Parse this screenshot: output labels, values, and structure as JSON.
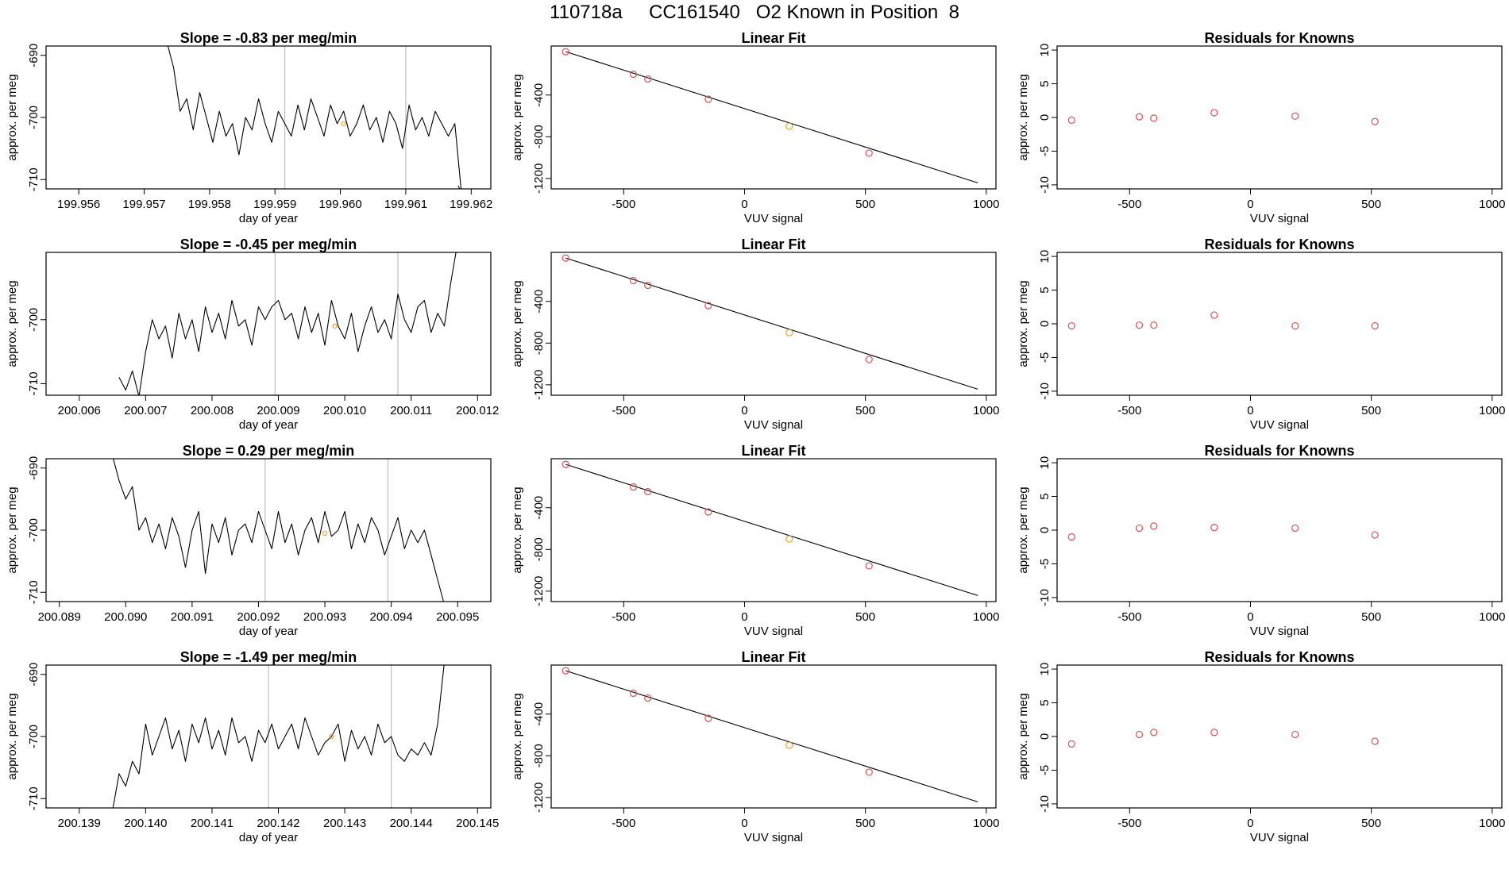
{
  "page_title": "110718a     CC161540   O2 Known in Position  8",
  "colors": {
    "axis": "#000000",
    "line": "#000000",
    "point_known": "#d9534f",
    "point_highlight": "#f0a020",
    "vline": "#bfbfbf"
  },
  "chart_data": [
    {
      "type": "line",
      "title": "Slope =  -0.83  per meg/min",
      "xlabel": "day of year",
      "ylabel": "approx. per meg",
      "xlim": [
        199.9555,
        199.9623
      ],
      "ylim": [
        -711.5,
        -688.5
      ],
      "xticks": [
        199.956,
        199.957,
        199.958,
        199.959,
        199.96,
        199.961,
        199.962
      ],
      "xtick_labels": [
        "199.956",
        "199.957",
        "199.958",
        "199.959",
        "199.960",
        "199.961",
        "199.962"
      ],
      "yticks": [
        -690,
        -700,
        -710
      ],
      "ytick_labels": [
        "-690",
        "-700",
        "-710"
      ],
      "vlines": [
        199.95915,
        199.961
      ],
      "highlight_point": {
        "x": 199.96005,
        "y": -701
      },
      "x": [
        199.95735,
        199.95745,
        199.95755,
        199.95765,
        199.95775,
        199.95785,
        199.95795,
        199.95805,
        199.95815,
        199.95825,
        199.95835,
        199.95845,
        199.95855,
        199.95865,
        199.95875,
        199.95885,
        199.95895,
        199.95905,
        199.95915,
        199.95925,
        199.95935,
        199.95945,
        199.95955,
        199.95965,
        199.95975,
        199.95985,
        199.95995,
        199.96005,
        199.96015,
        199.96025,
        199.96035,
        199.96045,
        199.96055,
        199.96065,
        199.96075,
        199.96085,
        199.96095,
        199.96105,
        199.96115,
        199.96125,
        199.96135,
        199.96145,
        199.96155,
        199.96165,
        199.96175,
        199.96185,
        199.9618
      ],
      "y": [
        -688,
        -692,
        -699,
        -697,
        -702,
        -696,
        -700,
        -704,
        -699,
        -703,
        -701,
        -706,
        -700,
        -702,
        -697,
        -701,
        -704,
        -699,
        -701,
        -703,
        -698,
        -702,
        -697,
        -700,
        -703,
        -698,
        -701,
        -699,
        -703,
        -701,
        -698,
        -702,
        -700,
        -704,
        -699,
        -701,
        -705,
        -698,
        -702,
        -700,
        -703,
        -699,
        -701,
        -703,
        -701,
        -712,
        -711
      ]
    },
    {
      "type": "scatter",
      "title": "Linear Fit",
      "xlabel": "VUV signal",
      "ylabel": "approx. per meg",
      "xlim": [
        -800,
        1040
      ],
      "ylim": [
        -1300,
        70
      ],
      "xticks": [
        -500,
        0,
        500,
        1000
      ],
      "xtick_labels": [
        "-500",
        "0",
        "500",
        "1000"
      ],
      "yticks": [
        -400,
        -800,
        -1200
      ],
      "ytick_labels": [
        "-400",
        "-800",
        "-1200"
      ],
      "fit_line": {
        "x1": -740,
        "y1": 16,
        "x2": 965,
        "y2": -1242
      },
      "x": [
        -740,
        -460,
        -400,
        -150,
        185,
        515
      ],
      "y": [
        16,
        -200,
        -246,
        -440,
        -700,
        -957
      ],
      "point_colors": [
        "known",
        "known",
        "known",
        "known",
        "highlight",
        "known"
      ]
    },
    {
      "type": "scatter",
      "title": "Residuals for Knowns",
      "xlabel": "VUV signal",
      "ylabel": "approx. per meg",
      "xlim": [
        -800,
        1040
      ],
      "ylim": [
        -10.6,
        10.6
      ],
      "xticks": [
        -500,
        0,
        500,
        1000
      ],
      "xtick_labels": [
        "-500",
        "0",
        "500",
        "1000"
      ],
      "yticks": [
        10,
        5,
        0,
        -5,
        -10
      ],
      "ytick_labels": [
        "10",
        "5",
        "0",
        "-5",
        "-10"
      ],
      "x": [
        -740,
        -460,
        -400,
        -150,
        185,
        515
      ],
      "y": [
        -0.4,
        0.1,
        -0.1,
        0.7,
        0.2,
        -0.6
      ],
      "point_colors": [
        "known",
        "known",
        "known",
        "known",
        "known",
        "known"
      ]
    },
    {
      "type": "line",
      "title": "Slope =  -0.45  per meg/min",
      "xlabel": "day of year",
      "ylabel": "approx. per meg",
      "xlim": [
        200.0055,
        200.0122
      ],
      "ylim": [
        -711.8,
        -689.5
      ],
      "xticks": [
        200.006,
        200.007,
        200.008,
        200.009,
        200.01,
        200.011,
        200.012
      ],
      "xtick_labels": [
        "200.006",
        "200.007",
        "200.008",
        "200.009",
        "200.010",
        "200.011",
        "200.012"
      ],
      "yticks": [
        -700,
        -710
      ],
      "ytick_labels": [
        "-700",
        "-710"
      ],
      "vlines": [
        200.00895,
        200.0108
      ],
      "highlight_point": {
        "x": 200.00985,
        "y": -701
      },
      "x": [
        200.0066,
        200.0067,
        200.0068,
        200.0069,
        200.007,
        200.0071,
        200.0072,
        200.0073,
        200.0074,
        200.0075,
        200.0076,
        200.0077,
        200.0078,
        200.0079,
        200.008,
        200.0081,
        200.0082,
        200.0083,
        200.0084,
        200.0085,
        200.0086,
        200.0087,
        200.0088,
        200.0089,
        200.009,
        200.0091,
        200.0092,
        200.0093,
        200.0094,
        200.0095,
        200.0096,
        200.0097,
        200.0098,
        200.0099,
        200.01,
        200.0101,
        200.0102,
        200.0103,
        200.0104,
        200.0105,
        200.0106,
        200.0107,
        200.0108,
        200.0109,
        200.011,
        200.0111,
        200.0112,
        200.0113,
        200.0114,
        200.0115,
        200.0116,
        200.0117
      ],
      "y": [
        -709,
        -711,
        -708,
        -712,
        -705,
        -700,
        -703,
        -701,
        -706,
        -699,
        -703,
        -700,
        -705,
        -698,
        -702,
        -699,
        -703,
        -697,
        -701,
        -700,
        -704,
        -698,
        -700,
        -698,
        -697,
        -700,
        -699,
        -703,
        -698,
        -702,
        -699,
        -704,
        -697,
        -701,
        -703,
        -699,
        -705,
        -701,
        -698,
        -702,
        -700,
        -703,
        -696,
        -700,
        -702,
        -698,
        -697,
        -702,
        -699,
        -701,
        -694,
        -688
      ]
    },
    {
      "type": "scatter",
      "title": "Linear Fit",
      "xlabel": "VUV signal",
      "ylabel": "approx. per meg",
      "xlim": [
        -800,
        1040
      ],
      "ylim": [
        -1300,
        70
      ],
      "xticks": [
        -500,
        0,
        500,
        1000
      ],
      "xtick_labels": [
        "-500",
        "0",
        "500",
        "1000"
      ],
      "yticks": [
        -400,
        -800,
        -1200
      ],
      "ytick_labels": [
        "-400",
        "-800",
        "-1200"
      ],
      "fit_line": {
        "x1": -740,
        "y1": 16,
        "x2": 965,
        "y2": -1242
      },
      "x": [
        -740,
        -460,
        -400,
        -150,
        185,
        515
      ],
      "y": [
        16,
        -200,
        -246,
        -440,
        -700,
        -957
      ],
      "point_colors": [
        "known",
        "known",
        "known",
        "known",
        "highlight",
        "known"
      ]
    },
    {
      "type": "scatter",
      "title": "Residuals for Knowns",
      "xlabel": "VUV signal",
      "ylabel": "approx. per meg",
      "xlim": [
        -800,
        1040
      ],
      "ylim": [
        -10.6,
        10.6
      ],
      "xticks": [
        -500,
        0,
        500,
        1000
      ],
      "xtick_labels": [
        "-500",
        "0",
        "500",
        "1000"
      ],
      "yticks": [
        10,
        5,
        0,
        -5,
        -10
      ],
      "ytick_labels": [
        "10",
        "5",
        "0",
        "-5",
        "-10"
      ],
      "x": [
        -740,
        -460,
        -400,
        -150,
        185,
        515
      ],
      "y": [
        -0.3,
        -0.2,
        -0.2,
        1.3,
        -0.3,
        -0.3
      ],
      "point_colors": [
        "known",
        "known",
        "known",
        "known",
        "known",
        "known"
      ]
    },
    {
      "type": "line",
      "title": "Slope =  0.29  per meg/min",
      "xlabel": "day of year",
      "ylabel": "approx. per meg",
      "xlim": [
        200.0888,
        200.0955
      ],
      "ylim": [
        -711.5,
        -688.5
      ],
      "xticks": [
        200.089,
        200.09,
        200.091,
        200.092,
        200.093,
        200.094,
        200.095
      ],
      "xtick_labels": [
        "200.089",
        "200.090",
        "200.091",
        "200.092",
        "200.093",
        "200.094",
        "200.095"
      ],
      "yticks": [
        -690,
        -700,
        -710
      ],
      "ytick_labels": [
        "-690",
        "-700",
        "-710"
      ],
      "vlines": [
        200.0921,
        200.09395
      ],
      "highlight_point": {
        "x": 200.093,
        "y": -700.5
      },
      "x": [
        200.0898,
        200.0899,
        200.09,
        200.0901,
        200.0902,
        200.0903,
        200.0904,
        200.0905,
        200.0906,
        200.0907,
        200.0908,
        200.0909,
        200.091,
        200.0911,
        200.0912,
        200.0913,
        200.0914,
        200.0915,
        200.0916,
        200.0917,
        200.0918,
        200.0919,
        200.092,
        200.0921,
        200.0922,
        200.0923,
        200.0924,
        200.0925,
        200.0926,
        200.0927,
        200.0928,
        200.0929,
        200.093,
        200.0931,
        200.0932,
        200.0933,
        200.0934,
        200.0935,
        200.0936,
        200.0937,
        200.0938,
        200.0939,
        200.094,
        200.0941,
        200.0942,
        200.0943,
        200.0944,
        200.0945,
        200.0946,
        200.0947,
        200.0948
      ],
      "y": [
        -688,
        -692,
        -695,
        -693,
        -700,
        -698,
        -702,
        -699,
        -703,
        -698,
        -701,
        -706,
        -700,
        -697,
        -707,
        -699,
        -702,
        -698,
        -704,
        -700,
        -699,
        -702,
        -697,
        -700,
        -703,
        -697,
        -702,
        -699,
        -704,
        -700,
        -698,
        -702,
        -697,
        -701,
        -700,
        -697,
        -703,
        -699,
        -702,
        -698,
        -700,
        -704,
        -701,
        -698,
        -703,
        -700,
        -702,
        -700,
        -704,
        -708,
        -712
      ]
    },
    {
      "type": "scatter",
      "title": "Linear Fit",
      "xlabel": "VUV signal",
      "ylabel": "approx. per meg",
      "xlim": [
        -800,
        1040
      ],
      "ylim": [
        -1300,
        70
      ],
      "xticks": [
        -500,
        0,
        500,
        1000
      ],
      "xtick_labels": [
        "-500",
        "0",
        "500",
        "1000"
      ],
      "yticks": [
        -400,
        -800,
        -1200
      ],
      "ytick_labels": [
        "-400",
        "-800",
        "-1200"
      ],
      "fit_line": {
        "x1": -740,
        "y1": 16,
        "x2": 965,
        "y2": -1242
      },
      "x": [
        -740,
        -460,
        -400,
        -150,
        185,
        515
      ],
      "y": [
        16,
        -200,
        -246,
        -440,
        -700,
        -957
      ],
      "point_colors": [
        "known",
        "known",
        "known",
        "known",
        "highlight",
        "known"
      ]
    },
    {
      "type": "scatter",
      "title": "Residuals for Knowns",
      "xlabel": "VUV signal",
      "ylabel": "approx. per meg",
      "xlim": [
        -800,
        1040
      ],
      "ylim": [
        -10.6,
        10.6
      ],
      "xticks": [
        -500,
        0,
        500,
        1000
      ],
      "xtick_labels": [
        "-500",
        "0",
        "500",
        "1000"
      ],
      "yticks": [
        10,
        5,
        0,
        -5,
        -10
      ],
      "ytick_labels": [
        "10",
        "5",
        "0",
        "-5",
        "-10"
      ],
      "x": [
        -740,
        -460,
        -400,
        -150,
        185,
        515
      ],
      "y": [
        -1.0,
        0.3,
        0.6,
        0.4,
        0.3,
        -0.7
      ],
      "point_colors": [
        "known",
        "known",
        "known",
        "known",
        "known",
        "known"
      ]
    },
    {
      "type": "line",
      "title": "Slope =  -1.49  per meg/min",
      "xlabel": "day of year",
      "ylabel": "approx. per meg",
      "xlim": [
        200.1385,
        200.1452
      ],
      "ylim": [
        -711.5,
        -688.5
      ],
      "xticks": [
        200.139,
        200.14,
        200.141,
        200.142,
        200.143,
        200.144,
        200.145
      ],
      "xtick_labels": [
        "200.139",
        "200.140",
        "200.141",
        "200.142",
        "200.143",
        "200.144",
        "200.145"
      ],
      "yticks": [
        -690,
        -700,
        -710
      ],
      "ytick_labels": [
        "-690",
        "-700",
        "-710"
      ],
      "vlines": [
        200.14185,
        200.1437
      ],
      "highlight_point": {
        "x": 200.1428,
        "y": -700
      },
      "x": [
        200.1395,
        200.1396,
        200.1397,
        200.1398,
        200.1399,
        200.14,
        200.1401,
        200.1402,
        200.1403,
        200.1404,
        200.1405,
        200.1406,
        200.1407,
        200.1408,
        200.1409,
        200.141,
        200.1411,
        200.1412,
        200.1413,
        200.1414,
        200.1415,
        200.1416,
        200.1417,
        200.1418,
        200.1419,
        200.142,
        200.1421,
        200.1422,
        200.1423,
        200.1424,
        200.1425,
        200.1426,
        200.1427,
        200.1428,
        200.1429,
        200.143,
        200.1431,
        200.1432,
        200.1433,
        200.1434,
        200.1435,
        200.1436,
        200.1437,
        200.1438,
        200.1439,
        200.144,
        200.1441,
        200.1442,
        200.1443,
        200.1444,
        200.1445
      ],
      "y": [
        -712,
        -706,
        -708,
        -704,
        -706,
        -698,
        -703,
        -700,
        -697,
        -702,
        -699,
        -704,
        -698,
        -701,
        -697,
        -702,
        -699,
        -703,
        -697,
        -701,
        -700,
        -704,
        -699,
        -701,
        -698,
        -702,
        -700,
        -698,
        -702,
        -697,
        -700,
        -703,
        -701,
        -700,
        -698,
        -704,
        -699,
        -702,
        -700,
        -703,
        -698,
        -701,
        -700,
        -703,
        -704,
        -702,
        -703,
        -701,
        -703,
        -698,
        -688
      ]
    },
    {
      "type": "scatter",
      "title": "Linear Fit",
      "xlabel": "VUV signal",
      "ylabel": "approx. per meg",
      "xlim": [
        -800,
        1040
      ],
      "ylim": [
        -1300,
        70
      ],
      "xticks": [
        -500,
        0,
        500,
        1000
      ],
      "xtick_labels": [
        "-500",
        "0",
        "500",
        "1000"
      ],
      "yticks": [
        -400,
        -800,
        -1200
      ],
      "ytick_labels": [
        "-400",
        "-800",
        "-1200"
      ],
      "fit_line": {
        "x1": -740,
        "y1": 16,
        "x2": 965,
        "y2": -1242
      },
      "x": [
        -740,
        -460,
        -400,
        -150,
        185,
        515
      ],
      "y": [
        16,
        -200,
        -246,
        -440,
        -700,
        -957
      ],
      "point_colors": [
        "known",
        "known",
        "known",
        "known",
        "highlight",
        "known"
      ]
    },
    {
      "type": "scatter",
      "title": "Residuals for Knowns",
      "xlabel": "VUV signal",
      "ylabel": "approx. per meg",
      "xlim": [
        -800,
        1040
      ],
      "ylim": [
        -10.6,
        10.6
      ],
      "xticks": [
        -500,
        0,
        500,
        1000
      ],
      "xtick_labels": [
        "-500",
        "0",
        "500",
        "1000"
      ],
      "yticks": [
        10,
        5,
        0,
        -5,
        -10
      ],
      "ytick_labels": [
        "10",
        "5",
        "0",
        "-5",
        "-10"
      ],
      "x": [
        -740,
        -460,
        -400,
        -150,
        185,
        515
      ],
      "y": [
        -1.1,
        0.3,
        0.6,
        0.6,
        0.3,
        -0.7
      ],
      "point_colors": [
        "known",
        "known",
        "known",
        "known",
        "known",
        "known"
      ]
    }
  ]
}
